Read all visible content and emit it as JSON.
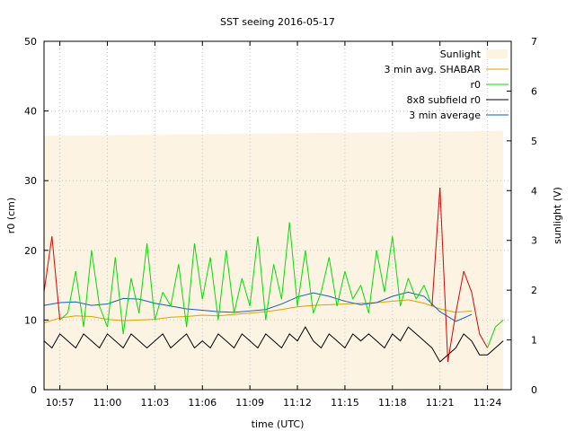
{
  "chart_data": {
    "type": "line",
    "title": "SST seeing 2016-05-17",
    "xlabel": "time (UTC)",
    "ylabel": "r0 (cm)",
    "ylabel_right": "sunlight (V)",
    "xlim": [
      "10:56:00",
      "11:25:30"
    ],
    "ylim": [
      0,
      50
    ],
    "ylim_right": [
      0,
      7
    ],
    "x_ticks": [
      "10:57",
      "11:00",
      "11:03",
      "11:06",
      "11:09",
      "11:12",
      "11:15",
      "11:18",
      "11:21",
      "11:24"
    ],
    "y_ticks": [
      0,
      10,
      20,
      30,
      40,
      50
    ],
    "y_ticks_right": [
      0,
      1,
      2,
      3,
      4,
      5,
      6,
      7
    ],
    "grid": true,
    "legend_position": "top-right",
    "legend": [
      "Sunlight",
      "3 min avg. SHABAR",
      "r0",
      "8x8 subfield r0",
      "3 min average"
    ],
    "colors": {
      "sunlight": "#fdf3e3",
      "shabar_avg": "#e0a000",
      "r0_good": "#00e000",
      "r0_bad": "#e00000",
      "subfield_r0": "#000000",
      "avg3": "#1060c0"
    },
    "sunlight_series": {
      "name": "Sunlight",
      "unit": "V",
      "x": [
        "10:56:00",
        "11:25:00"
      ],
      "values": [
        5.1,
        5.2
      ]
    },
    "series": [
      {
        "name": "3 min avg. SHABAR",
        "x": [
          "10:56:00",
          "10:57:00",
          "10:58:00",
          "10:59:00",
          "11:00:00",
          "11:01:00",
          "11:02:00",
          "11:03:00",
          "11:04:00",
          "11:05:00",
          "11:06:00",
          "11:07:00",
          "11:08:00",
          "11:09:00",
          "11:10:00",
          "11:11:00",
          "11:12:00",
          "11:13:00",
          "11:14:00",
          "11:15:00",
          "11:16:00",
          "11:17:00",
          "11:18:00",
          "11:19:00",
          "11:20:00",
          "11:21:00",
          "11:22:00",
          "11:23:00"
        ],
        "values": [
          9.6,
          10.3,
          10.6,
          10.5,
          10.1,
          9.9,
          10.0,
          10.1,
          10.4,
          10.5,
          10.7,
          10.6,
          10.8,
          11.0,
          11.2,
          11.5,
          11.9,
          12.1,
          12.2,
          12.3,
          12.4,
          12.5,
          12.7,
          12.9,
          12.4,
          11.6,
          11.1,
          11.3
        ]
      },
      {
        "name": "3 min average",
        "x": [
          "10:56:00",
          "10:57:00",
          "10:58:00",
          "10:59:00",
          "11:00:00",
          "11:01:00",
          "11:02:00",
          "11:03:00",
          "11:04:00",
          "11:05:00",
          "11:06:00",
          "11:07:00",
          "11:08:00",
          "11:09:00",
          "11:10:00",
          "11:11:00",
          "11:12:00",
          "11:13:00",
          "11:14:00",
          "11:15:00",
          "11:16:00",
          "11:17:00",
          "11:18:00",
          "11:19:00",
          "11:20:00",
          "11:21:00",
          "11:22:00",
          "11:23:00"
        ],
        "values": [
          12.1,
          12.5,
          12.6,
          12.1,
          12.3,
          13.1,
          13.0,
          12.4,
          12.0,
          11.6,
          11.4,
          11.2,
          11.1,
          11.3,
          11.5,
          12.3,
          13.3,
          13.9,
          13.4,
          12.7,
          12.2,
          12.5,
          13.4,
          14.0,
          13.4,
          11.2,
          9.8,
          10.8
        ]
      },
      {
        "name": "r0",
        "x": [
          "10:56:00",
          "10:56:30",
          "10:57:00",
          "10:57:30",
          "10:58:00",
          "10:58:30",
          "10:59:00",
          "10:59:30",
          "11:00:00",
          "11:00:30",
          "11:01:00",
          "11:01:30",
          "11:02:00",
          "11:02:30",
          "11:03:00",
          "11:03:30",
          "11:04:00",
          "11:04:30",
          "11:05:00",
          "11:05:30",
          "11:06:00",
          "11:06:30",
          "11:07:00",
          "11:07:30",
          "11:08:00",
          "11:08:30",
          "11:09:00",
          "11:09:30",
          "11:10:00",
          "11:10:30",
          "11:11:00",
          "11:11:30",
          "11:12:00",
          "11:12:30",
          "11:13:00",
          "11:13:30",
          "11:14:00",
          "11:14:30",
          "11:15:00",
          "11:15:30",
          "11:16:00",
          "11:16:30",
          "11:17:00",
          "11:17:30",
          "11:18:00",
          "11:18:30",
          "11:19:00",
          "11:19:30",
          "11:20:00",
          "11:20:30",
          "11:21:00",
          "11:21:30",
          "11:22:00",
          "11:22:30",
          "11:23:00",
          "11:23:30",
          "11:24:00",
          "11:24:30",
          "11:25:00"
        ],
        "values": [
          14,
          22,
          10,
          11,
          17,
          9,
          20,
          12,
          9,
          19,
          8,
          16,
          11,
          21,
          10,
          14,
          12,
          18,
          9,
          21,
          13,
          19,
          10,
          20,
          11,
          16,
          12,
          22,
          10,
          18,
          13,
          24,
          12,
          20,
          11,
          14,
          19,
          12,
          17,
          13,
          15,
          11,
          20,
          14,
          22,
          12,
          16,
          13,
          15,
          12,
          29,
          4,
          11,
          17,
          14,
          8,
          6,
          9,
          10
        ]
      },
      {
        "name": "8x8 subfield r0",
        "x": [
          "10:56:00",
          "10:56:30",
          "10:57:00",
          "10:57:30",
          "10:58:00",
          "10:58:30",
          "10:59:00",
          "10:59:30",
          "11:00:00",
          "11:00:30",
          "11:01:00",
          "11:01:30",
          "11:02:00",
          "11:02:30",
          "11:03:00",
          "11:03:30",
          "11:04:00",
          "11:04:30",
          "11:05:00",
          "11:05:30",
          "11:06:00",
          "11:06:30",
          "11:07:00",
          "11:07:30",
          "11:08:00",
          "11:08:30",
          "11:09:00",
          "11:09:30",
          "11:10:00",
          "11:10:30",
          "11:11:00",
          "11:11:30",
          "11:12:00",
          "11:12:30",
          "11:13:00",
          "11:13:30",
          "11:14:00",
          "11:14:30",
          "11:15:00",
          "11:15:30",
          "11:16:00",
          "11:16:30",
          "11:17:00",
          "11:17:30",
          "11:18:00",
          "11:18:30",
          "11:19:00",
          "11:19:30",
          "11:20:00",
          "11:20:30",
          "11:21:00",
          "11:21:30",
          "11:22:00",
          "11:22:30",
          "11:23:00",
          "11:23:30",
          "11:24:00",
          "11:24:30",
          "11:25:00"
        ],
        "values": [
          7,
          6,
          8,
          7,
          6,
          8,
          7,
          6,
          8,
          7,
          6,
          8,
          7,
          6,
          7,
          8,
          6,
          7,
          8,
          6,
          7,
          6,
          8,
          7,
          6,
          8,
          7,
          6,
          8,
          7,
          6,
          8,
          7,
          9,
          7,
          6,
          8,
          7,
          6,
          8,
          7,
          8,
          7,
          6,
          8,
          7,
          9,
          8,
          7,
          6,
          4,
          5,
          6,
          8,
          7,
          5,
          5,
          6,
          7
        ]
      }
    ]
  }
}
